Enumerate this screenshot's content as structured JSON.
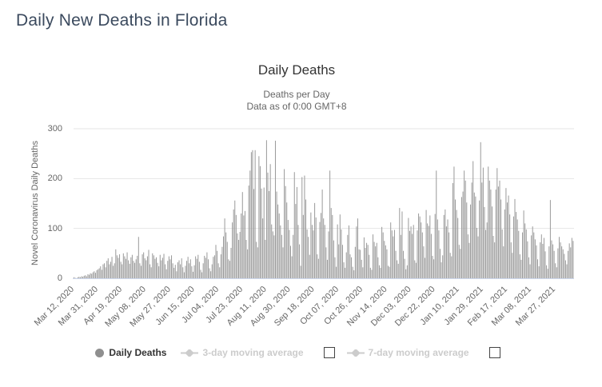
{
  "page": {
    "title": "Daily New Deaths in Florida"
  },
  "chart": {
    "title": "Daily Deaths",
    "subtitle_line1": "Deaths per Day",
    "subtitle_line2": "Data as of 0:00 GMT+8",
    "y_axis": {
      "title": "Novel Coronavirus Daily Deaths",
      "ticks": [
        0,
        100,
        200,
        300
      ],
      "max": 300
    },
    "x_axis": {
      "tick_interval_days": 19,
      "tick_labels": [
        "Mar 12, 2020",
        "Mar 31, 2020",
        "Apr 19, 2020",
        "May 08, 2020",
        "May 27, 2020",
        "Jun 15, 2020",
        "Jul 04, 2020",
        "Jul 23, 2020",
        "Aug 11, 2020",
        "Aug 30, 2020",
        "Sep 18, 2020",
        "Oct 07, 2020",
        "Oct 26, 2020",
        "Nov 14, 2020",
        "Dec 03, 2020",
        "Dec 22, 2020",
        "Jan 10, 2021",
        "Jan 29, 2021",
        "Feb 17, 2021",
        "Mar 08, 2021",
        "Mar 27, 2021"
      ]
    },
    "legend": [
      {
        "label": "Daily Deaths",
        "marker": "circle",
        "active": true,
        "checkbox": false
      },
      {
        "label": "3-day moving average",
        "marker": "line-diamond",
        "active": false,
        "checkbox": true,
        "checked": false
      },
      {
        "label": "7-day moving average",
        "marker": "line-diamond",
        "active": false,
        "checkbox": true,
        "checked": false
      }
    ],
    "colors": {
      "page_title": "#3b4a5e",
      "title": "#333333",
      "subtitle": "#666666",
      "bar": "#9a9a9a",
      "grid": "#e6e6e6",
      "axis_line": "#ccd6eb",
      "legend_active_text": "#333333",
      "legend_disabled": "#cccccc",
      "legend_circle": "#8f8f8f"
    }
  },
  "chart_data": {
    "type": "bar",
    "title": "Daily Deaths",
    "subtitle": "Deaths per Day — Data as of 0:00 GMT+8",
    "xlabel": "",
    "ylabel": "Novel Coronavirus Daily Deaths",
    "ylim": [
      0,
      300
    ],
    "grid": true,
    "legend_position": "bottom",
    "legend": [
      "Daily Deaths",
      "3-day moving average",
      "7-day moving average"
    ],
    "frequency": "daily",
    "start_date": "Mar 12, 2020",
    "end_date": "Apr 10, 2021",
    "x_tick_labels": [
      "Mar 12, 2020",
      "Mar 31, 2020",
      "Apr 19, 2020",
      "May 08, 2020",
      "May 27, 2020",
      "Jun 15, 2020",
      "Jul 04, 2020",
      "Jul 23, 2020",
      "Aug 11, 2020",
      "Aug 30, 2020",
      "Sep 18, 2020",
      "Oct 07, 2020",
      "Oct 26, 2020",
      "Nov 14, 2020",
      "Dec 03, 2020",
      "Dec 22, 2020",
      "Jan 10, 2021",
      "Jan 29, 2021",
      "Feb 17, 2021",
      "Mar 08, 2021",
      "Mar 27, 2021"
    ],
    "values": [
      2,
      1,
      0,
      2,
      3,
      2,
      4,
      3,
      5,
      6,
      4,
      8,
      7,
      10,
      9,
      12,
      14,
      11,
      16,
      18,
      20,
      24,
      17,
      28,
      30,
      22,
      35,
      40,
      28,
      33,
      43,
      25,
      30,
      58,
      46,
      41,
      48,
      33,
      28,
      50,
      44,
      39,
      52,
      36,
      29,
      42,
      47,
      35,
      31,
      38,
      45,
      83,
      30,
      25,
      48,
      52,
      40,
      36,
      44,
      57,
      28,
      22,
      50,
      46,
      39,
      42,
      31,
      24,
      47,
      36,
      41,
      49,
      28,
      18,
      35,
      44,
      38,
      46,
      30,
      21,
      27,
      14,
      32,
      36,
      28,
      40,
      22,
      12,
      25,
      35,
      43,
      30,
      38,
      24,
      13,
      26,
      44,
      39,
      47,
      33,
      17,
      12,
      30,
      45,
      41,
      52,
      38,
      20,
      14,
      28,
      43,
      46,
      67,
      55,
      30,
      22,
      48,
      63,
      84,
      120,
      92,
      73,
      38,
      35,
      61,
      112,
      138,
      156,
      127,
      90,
      77,
      93,
      130,
      173,
      126,
      135,
      77,
      58,
      186,
      216,
      253,
      257,
      179,
      257,
      73,
      62,
      245,
      225,
      180,
      120,
      182,
      77,
      277,
      212,
      175,
      229,
      108,
      94,
      86,
      276,
      174,
      148,
      130,
      106,
      87,
      62,
      219,
      185,
      152,
      117,
      97,
      65,
      44,
      87,
      213,
      149,
      183,
      107,
      68,
      25,
      203,
      127,
      206,
      158,
      98,
      83,
      47,
      132,
      107,
      96,
      151,
      122,
      48,
      39,
      113,
      131,
      178,
      120,
      107,
      62,
      37,
      94,
      216,
      141,
      127,
      76,
      42,
      23,
      108,
      68,
      128,
      98,
      67,
      32,
      21,
      52,
      87,
      106,
      48,
      42,
      23,
      16,
      63,
      104,
      120,
      58,
      57,
      37,
      22,
      82,
      61,
      71,
      67,
      47,
      21,
      17,
      88,
      73,
      64,
      71,
      42,
      26,
      21,
      103,
      92,
      75,
      66,
      58,
      25,
      23,
      112,
      96,
      84,
      97,
      55,
      36,
      29,
      141,
      87,
      134,
      55,
      39,
      18,
      26,
      121,
      95,
      104,
      89,
      107,
      36,
      31,
      96,
      130,
      124,
      112,
      92,
      64,
      41,
      137,
      110,
      105,
      126,
      89,
      45,
      38,
      129,
      216,
      118,
      96,
      59,
      32,
      46,
      127,
      138,
      104,
      118,
      92,
      51,
      44,
      191,
      224,
      158,
      137,
      121,
      67,
      59,
      163,
      174,
      216,
      196,
      152,
      88,
      71,
      148,
      192,
      235,
      172,
      164,
      101,
      84,
      156,
      273,
      192,
      222,
      143,
      97,
      112,
      224,
      196,
      178,
      144,
      85,
      72,
      178,
      221,
      184,
      196,
      158,
      98,
      64,
      138,
      181,
      152,
      166,
      128,
      72,
      51,
      124,
      159,
      133,
      118,
      95,
      48,
      37,
      92,
      136,
      110,
      98,
      74,
      42,
      28,
      86,
      104,
      92,
      78,
      66,
      38,
      24,
      72,
      88,
      69,
      81,
      54,
      26,
      19,
      64,
      157,
      76,
      68,
      55,
      30,
      22,
      60,
      83,
      72,
      64,
      58,
      49,
      36,
      28,
      55,
      70,
      62,
      81,
      75
    ]
  }
}
